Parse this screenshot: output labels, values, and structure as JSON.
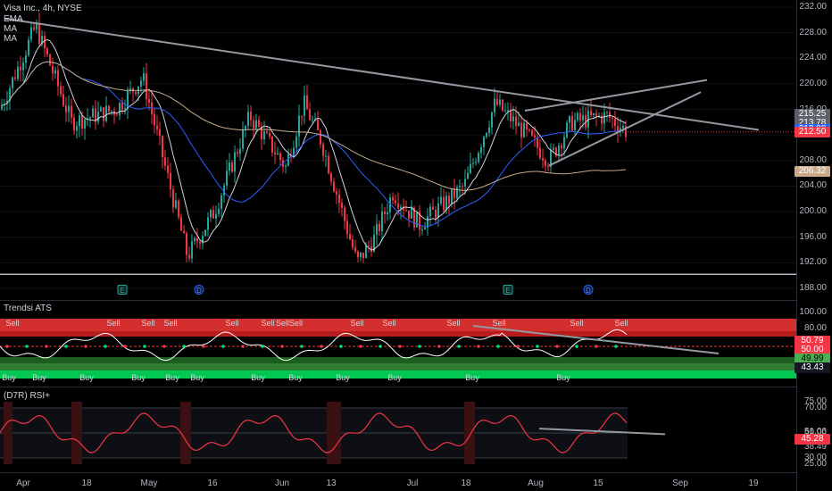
{
  "legend": {
    "symbol": "Visa Inc., 4h, NYSE",
    "ema": "EMA",
    "ma1": "MA",
    "ma2": "MA"
  },
  "price_axis": {
    "labels": [
      "232.00",
      "228.00",
      "224.00",
      "220.00",
      "216.00",
      "212.00",
      "208.00",
      "204.00",
      "200.00",
      "196.00",
      "192.00",
      "188.00"
    ],
    "values": [
      232,
      228,
      224,
      220,
      216,
      212,
      208,
      204,
      200,
      196,
      192,
      188
    ],
    "badges": [
      {
        "text": "215.25",
        "value": 215.25,
        "color": "#5d606b"
      },
      {
        "text": "213.78",
        "value": 213.78,
        "color": "#5d606b"
      },
      {
        "text": "212.90",
        "value": 212.9,
        "color": "#2962ff"
      },
      {
        "text": "212.50",
        "value": 212.5,
        "color": "#f23645"
      },
      {
        "text": "206.32",
        "value": 206.32,
        "color": "#c9ab8b"
      }
    ]
  },
  "time_axis": {
    "labels": [
      "Apr",
      "18",
      "May",
      "16",
      "Jun",
      "13",
      "Jul",
      "18",
      "Aug",
      "15",
      "Sep",
      "19"
    ]
  },
  "events": [
    "E",
    "D",
    "E",
    "D"
  ],
  "trendsi": {
    "title": "Trendsi ATS",
    "axis_labels": [
      "100.00",
      "80.00"
    ],
    "badges": [
      {
        "text": "50.79",
        "color": "#f23645"
      },
      {
        "text": "50.00",
        "color": "#f23645"
      },
      {
        "text": "49.99",
        "color": "#4caf50"
      },
      {
        "text": "43.43",
        "color": "#131722"
      }
    ],
    "sell_label": "Sell",
    "buy_label": "Buy",
    "sell_signals": [
      "Sell",
      "Sell",
      "Sell",
      "Sell",
      "Sell",
      "Sell",
      "SellSell",
      "Sell",
      "Sell",
      "Sell",
      "Sell",
      "Sell",
      "Sell"
    ],
    "buy_signals": [
      "Buy",
      "Buy",
      "Buy",
      "Buy",
      "Buy",
      "Buy",
      "Buy",
      "Buy",
      "Buy",
      "Buy",
      "Buy",
      "Buy"
    ]
  },
  "rsi": {
    "title": "(D7R) RSI+",
    "axis_labels": [
      "75.00",
      "70.00",
      "51.06",
      "50.00",
      "45.28",
      "38.49",
      "30.00",
      "25.00"
    ],
    "badges": [
      {
        "text": "45.28",
        "color": "#f23645"
      }
    ]
  },
  "colors": {
    "up": "#26a69a",
    "down": "#f23645",
    "background": "#000000",
    "ema": "#2962ff",
    "ma": "#c9ab8b",
    "trendline": "#9598a1"
  }
}
